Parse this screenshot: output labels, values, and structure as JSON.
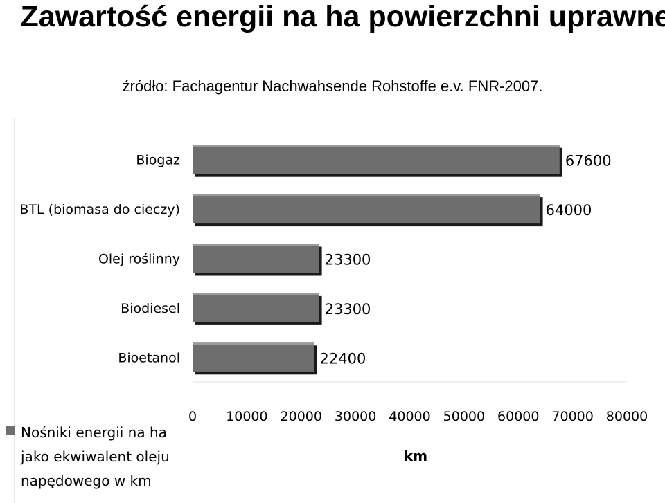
{
  "header": {
    "title": "Zawartość energii na ha powierzchni uprawnej",
    "subtitle": "źródło: Fachagentur Nachwahsende Rohstoffe e.v. FNR-2007."
  },
  "colors": {
    "bar": "#6e6e6e",
    "bar_highlight": "#9a9a9a",
    "bar_shadow": "#1a1a1a"
  },
  "chart_data": {
    "type": "bar",
    "orientation": "horizontal",
    "title": "Zawartość energii na ha powierzchni uprawnej",
    "categories": [
      "Biogaz",
      "BTL (biomasa do cieczy)",
      "Olej roślinny",
      "Biodiesel",
      "Bioetanol"
    ],
    "series": [
      {
        "name": "Nośniki energii na ha jako ekwiwalent oleju napędowego w km",
        "values": [
          67600,
          64000,
          23300,
          23300,
          22400
        ]
      }
    ],
    "data_labels": [
      "67600",
      "64000",
      "23300",
      "23300",
      "22400"
    ],
    "xlabel": "km",
    "ylabel": "",
    "xlim": [
      0,
      80000
    ],
    "x_ticks": [
      0,
      10000,
      20000,
      30000,
      40000,
      50000,
      60000,
      70000,
      80000
    ],
    "x_tick_labels": [
      "0",
      "10000",
      "20000",
      "30000",
      "40000",
      "50000",
      "60000",
      "70000",
      "80000"
    ],
    "grid": false,
    "legend_position": "bottom-left"
  }
}
